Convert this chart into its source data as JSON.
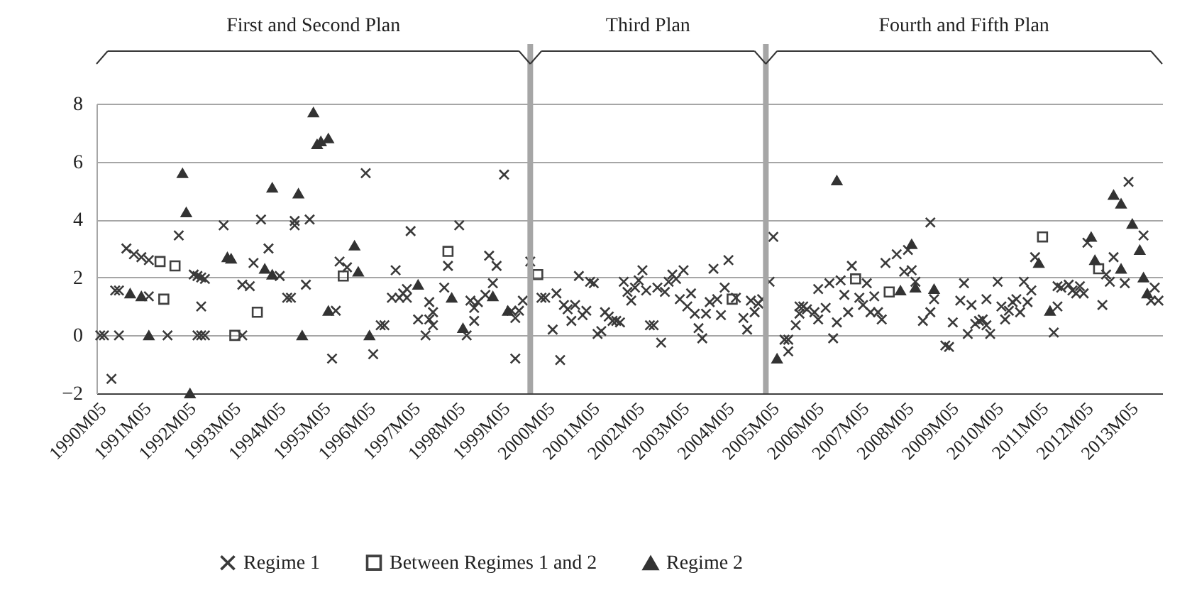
{
  "chart_data": {
    "type": "scatter",
    "xlim": [
      "1990-05",
      "2014-02"
    ],
    "xticks": [
      {
        "value": "1990-05",
        "label": "1990M05"
      },
      {
        "value": "1991-05",
        "label": "1991M05"
      },
      {
        "value": "1992-05",
        "label": "1992M05"
      },
      {
        "value": "1993-05",
        "label": "1993M05"
      },
      {
        "value": "1994-05",
        "label": "1994M05"
      },
      {
        "value": "1995-05",
        "label": "1995M05"
      },
      {
        "value": "1996-05",
        "label": "1996M05"
      },
      {
        "value": "1997-05",
        "label": "1997M05"
      },
      {
        "value": "1998-05",
        "label": "1998M05"
      },
      {
        "value": "1999-05",
        "label": "1999M05"
      },
      {
        "value": "2000-05",
        "label": "2000M05"
      },
      {
        "value": "2001-05",
        "label": "2001M05"
      },
      {
        "value": "2002-05",
        "label": "2002M05"
      },
      {
        "value": "2003-05",
        "label": "2003M05"
      },
      {
        "value": "2004-05",
        "label": "2004M05"
      },
      {
        "value": "2005-05",
        "label": "2005M05"
      },
      {
        "value": "2006-05",
        "label": "2006M05"
      },
      {
        "value": "2007-05",
        "label": "2007M05"
      },
      {
        "value": "2008-05",
        "label": "2008M05"
      },
      {
        "value": "2009-05",
        "label": "2009M05"
      },
      {
        "value": "2010-05",
        "label": "2010M05"
      },
      {
        "value": "2011-05",
        "label": "2011M05"
      },
      {
        "value": "2012-05",
        "label": "2012M05"
      },
      {
        "value": "2013-05",
        "label": "2013M05"
      }
    ],
    "ylim": [
      -2,
      8
    ],
    "yticks": [
      -2,
      0,
      2,
      4,
      6,
      8
    ],
    "grid": "y",
    "legend": "bottom",
    "series": [
      {
        "name": "Regime 1",
        "color": "#3a3a3a",
        "marker": "cross",
        "x": [
          "1990-06",
          "1990-07",
          "1990-09",
          "1990-10",
          "1990-11",
          "1990-11",
          "1991-01",
          "1991-03",
          "1991-05",
          "1991-07",
          "1991-07",
          "1991-12",
          "1992-03",
          "1992-07",
          "1992-08",
          "1992-08",
          "1992-09",
          "1992-09",
          "1992-09",
          "1992-10",
          "1992-10",
          "1993-03",
          "1993-08",
          "1993-08",
          "1993-10",
          "1993-11",
          "1994-01",
          "1994-03",
          "1994-06",
          "1994-08",
          "1994-09",
          "1994-10",
          "1994-10",
          "1995-01",
          "1995-02",
          "1995-08",
          "1995-09",
          "1995-10",
          "1995-12",
          "1996-05",
          "1996-07",
          "1996-09",
          "1996-10",
          "1996-12",
          "1997-01",
          "1997-02",
          "1997-03",
          "1997-04",
          "1997-04",
          "1997-05",
          "1997-07",
          "1997-09",
          "1997-10",
          "1997-10",
          "1997-11",
          "1997-11",
          "1998-02",
          "1998-03",
          "1998-06",
          "1998-08",
          "1998-09",
          "1998-10",
          "1998-10",
          "1998-11",
          "1999-01",
          "1999-02",
          "1999-03",
          "1999-04",
          "1999-06",
          "1999-08",
          "1999-09",
          "1999-09",
          "1999-10",
          "1999-11",
          "2000-01",
          "2000-04",
          "2000-05",
          "2000-07",
          "2000-08",
          "2000-09",
          "2000-10",
          "2000-11",
          "2000-12",
          "2001-01",
          "2001-02",
          "2001-03",
          "2001-04",
          "2001-05",
          "2001-06",
          "2001-07",
          "2001-08",
          "2001-09",
          "2001-10",
          "2001-11",
          "2001-12",
          "2002-01",
          "2002-02",
          "2002-03",
          "2002-04",
          "2002-05",
          "2002-06",
          "2002-07",
          "2002-08",
          "2002-09",
          "2002-10",
          "2002-11",
          "2002-12",
          "2003-01",
          "2003-02",
          "2003-03",
          "2003-04",
          "2003-05",
          "2003-06",
          "2003-07",
          "2003-08",
          "2003-09",
          "2003-10",
          "2003-11",
          "2003-12",
          "2004-01",
          "2004-02",
          "2004-03",
          "2004-04",
          "2004-05",
          "2004-06",
          "2004-08",
          "2004-10",
          "2004-11",
          "2004-12",
          "2005-01",
          "2005-02",
          "2005-03",
          "2005-05",
          "2005-06",
          "2005-09",
          "2005-10",
          "2005-10",
          "2005-12",
          "2006-01",
          "2006-01",
          "2006-02",
          "2006-03",
          "2006-05",
          "2006-06",
          "2006-06",
          "2006-08",
          "2006-09",
          "2006-10",
          "2006-11",
          "2006-12",
          "2007-01",
          "2007-02",
          "2007-03",
          "2007-05",
          "2007-06",
          "2007-07",
          "2007-08",
          "2007-09",
          "2007-10",
          "2007-11",
          "2007-12",
          "2008-03",
          "2008-05",
          "2008-06",
          "2008-07",
          "2008-08",
          "2008-10",
          "2008-12",
          "2008-12",
          "2009-01",
          "2009-04",
          "2009-05",
          "2009-06",
          "2009-08",
          "2009-09",
          "2009-10",
          "2009-11",
          "2009-12",
          "2010-01",
          "2010-02",
          "2010-03",
          "2010-03",
          "2010-04",
          "2010-06",
          "2010-07",
          "2010-08",
          "2010-09",
          "2010-10",
          "2010-11",
          "2010-12",
          "2011-01",
          "2011-02",
          "2011-03",
          "2011-04",
          "2011-09",
          "2011-10",
          "2011-10",
          "2011-11",
          "2012-01",
          "2012-02",
          "2012-03",
          "2012-04",
          "2012-05",
          "2012-06",
          "2012-10",
          "2012-11",
          "2012-12",
          "2013-01",
          "2013-04",
          "2013-05",
          "2013-09",
          "2013-11",
          "2013-12",
          "2014-01"
        ],
        "values": [
          0,
          0,
          -1.5,
          1.55,
          0,
          1.55,
          3,
          2.8,
          2.7,
          2.6,
          1.35,
          0,
          3.45,
          2.1,
          2.05,
          0,
          2,
          1,
          0,
          1.95,
          0,
          3.8,
          0,
          1.75,
          1.7,
          2.5,
          4,
          3,
          2.05,
          1.3,
          1.3,
          3.95,
          3.8,
          1.75,
          4,
          -0.8,
          0.85,
          2.55,
          2.35,
          5.6,
          -0.65,
          0.35,
          0.35,
          1.3,
          2.25,
          1.3,
          1.45,
          1.3,
          1.6,
          3.6,
          0.55,
          0,
          1.15,
          0.55,
          0.8,
          0.35,
          1.65,
          2.4,
          3.8,
          0,
          1.2,
          0.5,
          0.95,
          1.15,
          1.4,
          2.75,
          1.8,
          2.4,
          5.55,
          0.85,
          0.6,
          -0.8,
          0.85,
          1.2,
          2.55,
          1.3,
          1.3,
          0.2,
          1.45,
          -0.85,
          1.05,
          0.9,
          0.5,
          1.05,
          2.05,
          0.7,
          0.85,
          1.85,
          1.8,
          0.05,
          0.15,
          0.8,
          0.65,
          0.5,
          0.5,
          0.45,
          1.85,
          1.5,
          1.2,
          1.65,
          1.9,
          2.25,
          1.55,
          0.35,
          0.35,
          1.65,
          -0.25,
          1.5,
          1.85,
          2.1,
          1.95,
          1.25,
          2.25,
          1,
          1.45,
          0.75,
          0.25,
          -0.1,
          0.75,
          1.15,
          2.3,
          1.25,
          0.7,
          1.65,
          2.6,
          1.3,
          0.6,
          0.2,
          1.2,
          0.8,
          1.1,
          1.25,
          1.85,
          3.4,
          -0.15,
          -0.55,
          -0.15,
          0.35,
          0.75,
          1,
          1,
          0.9,
          0.8,
          0.55,
          1.6,
          0.95,
          1.8,
          -0.1,
          0.45,
          1.9,
          1.4,
          0.8,
          2.4,
          1.3,
          1.05,
          1.8,
          0.8,
          1.35,
          0.8,
          0.55,
          2.5,
          2.8,
          2.2,
          2.95,
          2.25,
          1.85,
          0.5,
          3.9,
          0.8,
          1.25,
          -0.35,
          -0.4,
          0.45,
          1.2,
          1.8,
          0.05,
          1.05,
          0.4,
          0.5,
          0.55,
          1.25,
          0.35,
          0.05,
          1.85,
          1,
          0.55,
          0.85,
          1.15,
          1.25,
          0.8,
          1.85,
          1.15,
          1.55,
          2.7,
          0.1,
          1,
          1.7,
          1.65,
          1.75,
          1.55,
          1.45,
          1.7,
          1.45,
          3.2,
          1.05,
          2.1,
          1.85,
          2.7,
          1.8,
          5.3,
          3.45,
          1.2,
          1.65,
          1.2
        ]
      },
      {
        "name": "Between Regimes 1 and 2",
        "color": "#404040",
        "marker": "square",
        "x": [
          "1991-10",
          "1991-11",
          "1992-02",
          "1993-06",
          "1993-12",
          "1995-11",
          "1998-03",
          "2000-03",
          "2004-07",
          "2007-04",
          "2008-01",
          "2011-06",
          "2012-09"
        ],
        "values": [
          2.55,
          1.25,
          2.4,
          0,
          0.8,
          2.05,
          2.9,
          2.1,
          1.25,
          1.95,
          1.5,
          3.4,
          2.3
        ]
      },
      {
        "name": "Regime 2",
        "color": "#333333",
        "marker": "triangle",
        "x": [
          "1991-02",
          "1991-05",
          "1991-07",
          "1992-04",
          "1992-05",
          "1992-06",
          "1993-04",
          "1993-05",
          "1994-02",
          "1994-04",
          "1994-04",
          "1994-11",
          "1994-12",
          "1995-03",
          "1995-04",
          "1995-05",
          "1995-07",
          "1995-07",
          "1996-02",
          "1996-03",
          "1996-06",
          "1997-07",
          "1998-04",
          "1998-07",
          "1999-03",
          "1999-07",
          "2005-07",
          "2006-11",
          "2008-04",
          "2008-07",
          "2008-08",
          "2009-01",
          "2011-05",
          "2011-08",
          "2012-07",
          "2012-08",
          "2013-01",
          "2013-03",
          "2013-03",
          "2013-06",
          "2013-08",
          "2013-09",
          "2013-10"
        ],
        "values": [
          1.45,
          1.35,
          0,
          5.6,
          4.25,
          -2,
          2.7,
          2.65,
          2.3,
          5.1,
          2.1,
          4.9,
          0,
          7.7,
          6.6,
          6.7,
          6.8,
          0.85,
          3.1,
          2.2,
          0,
          1.75,
          1.3,
          0.25,
          1.35,
          0.85,
          -0.8,
          5.35,
          1.55,
          3.15,
          1.65,
          1.6,
          2.5,
          0.85,
          3.4,
          2.6,
          4.85,
          4.55,
          2.3,
          3.85,
          2.95,
          2,
          1.45
        ]
      }
    ],
    "ref_lines": [
      {
        "axis": "x",
        "value": "2000-01",
        "color": "#a6a6a6"
      },
      {
        "axis": "x",
        "value": "2005-04",
        "color": "#a6a6a6"
      }
    ],
    "annotations": [
      "First and Second Plan",
      "Third Plan",
      "Fourth and Fifth Plan"
    ]
  }
}
